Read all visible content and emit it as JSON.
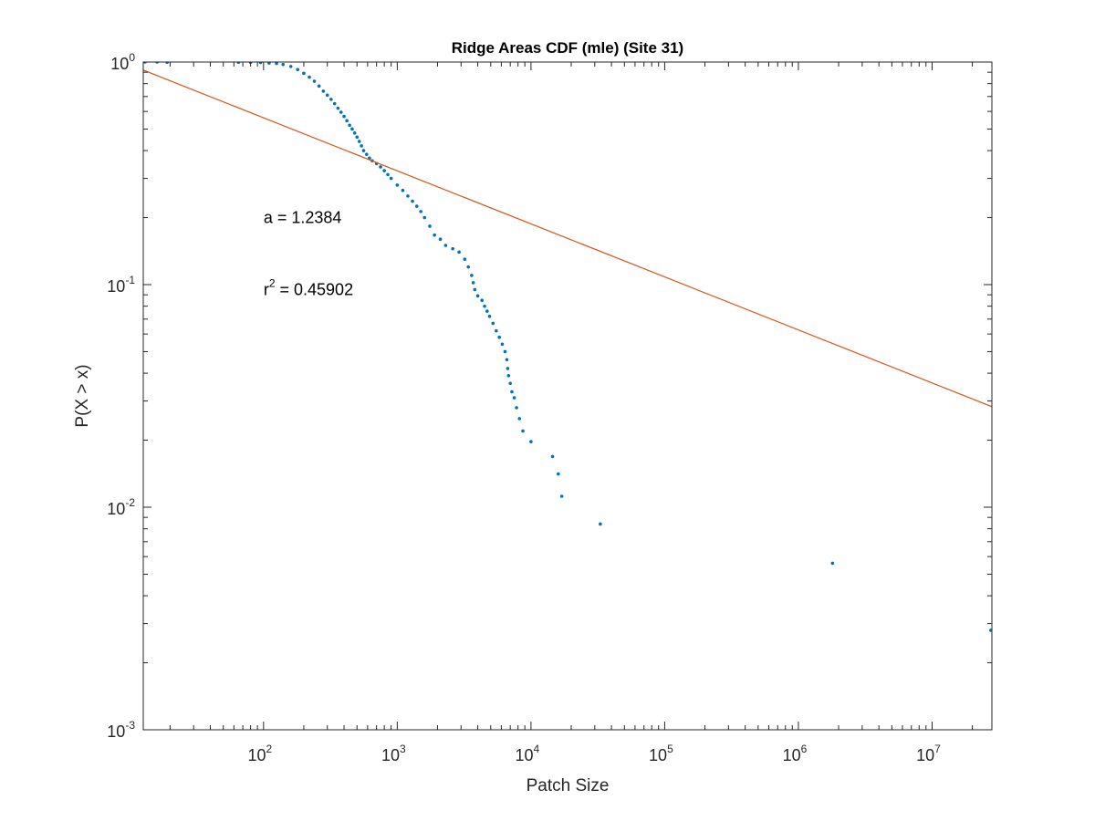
{
  "chart_data": {
    "type": "scatter",
    "title": "Ridge Areas CDF (mle) (Site 31)",
    "xlabel": "Patch Size",
    "ylabel": "P(X > x)",
    "xscale": "log",
    "yscale": "log",
    "xlim": [
      12.6,
      28000000
    ],
    "ylim": [
      0.001,
      1
    ],
    "grid": false,
    "legend": "none",
    "x_ticks": [
      {
        "base": "10",
        "exp": "2",
        "value": 100
      },
      {
        "base": "10",
        "exp": "3",
        "value": 1000
      },
      {
        "base": "10",
        "exp": "4",
        "value": 10000
      },
      {
        "base": "10",
        "exp": "5",
        "value": 100000
      },
      {
        "base": "10",
        "exp": "6",
        "value": 1000000
      },
      {
        "base": "10",
        "exp": "7",
        "value": 10000000
      }
    ],
    "y_ticks": [
      {
        "base": "10",
        "exp": "-3",
        "value": 0.001
      },
      {
        "base": "10",
        "exp": "-2",
        "value": 0.01
      },
      {
        "base": "10",
        "exp": "-1",
        "value": 0.1
      },
      {
        "base": "10",
        "exp": "0",
        "value": 1
      }
    ],
    "series": [
      {
        "color": "#0072BD",
        "points": [
          [
            13,
            1.0
          ],
          [
            16,
            1.0
          ],
          [
            19,
            0.998
          ],
          [
            65,
            0.998
          ],
          [
            80,
            0.997
          ],
          [
            95,
            0.995
          ],
          [
            110,
            0.99
          ],
          [
            125,
            0.985
          ],
          [
            140,
            0.975
          ],
          [
            160,
            0.955
          ],
          [
            180,
            0.925
          ],
          [
            200,
            0.89
          ],
          [
            220,
            0.855
          ],
          [
            240,
            0.82
          ],
          [
            260,
            0.78
          ],
          [
            280,
            0.74
          ],
          [
            300,
            0.71
          ],
          [
            320,
            0.68
          ],
          [
            340,
            0.65
          ],
          [
            360,
            0.62
          ],
          [
            380,
            0.595
          ],
          [
            400,
            0.57
          ],
          [
            420,
            0.545
          ],
          [
            440,
            0.52
          ],
          [
            460,
            0.5
          ],
          [
            480,
            0.48
          ],
          [
            500,
            0.46
          ],
          [
            520,
            0.44
          ],
          [
            540,
            0.42
          ],
          [
            560,
            0.4
          ],
          [
            590,
            0.385
          ],
          [
            620,
            0.37
          ],
          [
            650,
            0.36
          ],
          [
            700,
            0.35
          ],
          [
            750,
            0.338
          ],
          [
            800,
            0.325
          ],
          [
            850,
            0.312
          ],
          [
            900,
            0.3
          ],
          [
            1000,
            0.28
          ],
          [
            1100,
            0.265
          ],
          [
            1200,
            0.25
          ],
          [
            1300,
            0.237
          ],
          [
            1400,
            0.225
          ],
          [
            1500,
            0.213
          ],
          [
            1600,
            0.2
          ],
          [
            1750,
            0.183
          ],
          [
            1900,
            0.167
          ],
          [
            2100,
            0.16
          ],
          [
            2300,
            0.15
          ],
          [
            2600,
            0.145
          ],
          [
            2900,
            0.14
          ],
          [
            3200,
            0.13
          ],
          [
            3400,
            0.12
          ],
          [
            3600,
            0.11
          ],
          [
            3700,
            0.102
          ],
          [
            3800,
            0.095
          ],
          [
            4000,
            0.089
          ],
          [
            4300,
            0.085
          ],
          [
            4500,
            0.08
          ],
          [
            4700,
            0.076
          ],
          [
            4900,
            0.072
          ],
          [
            5200,
            0.067
          ],
          [
            5500,
            0.062
          ],
          [
            5800,
            0.058
          ],
          [
            6100,
            0.054
          ],
          [
            6400,
            0.05
          ],
          [
            6600,
            0.046
          ],
          [
            6700,
            0.042
          ],
          [
            6800,
            0.039
          ],
          [
            7000,
            0.036
          ],
          [
            7200,
            0.033
          ],
          [
            7500,
            0.031
          ],
          [
            7800,
            0.028
          ],
          [
            8200,
            0.025
          ],
          [
            8700,
            0.022
          ],
          [
            10000,
            0.0197
          ],
          [
            14500,
            0.0169
          ],
          [
            16000,
            0.0141
          ],
          [
            17000,
            0.0112
          ],
          [
            33000,
            0.0084
          ],
          [
            1800000,
            0.0056
          ],
          [
            27500000,
            0.0028
          ]
        ]
      },
      {
        "type": "line",
        "color": "#D95319",
        "points": [
          [
            12.6,
            0.92
          ],
          [
            28000000,
            0.0283
          ]
        ]
      }
    ],
    "annotations": [
      {
        "text": "a = 1.2384",
        "x": 100,
        "y": 0.2
      },
      {
        "base": "r",
        "sup": "2",
        "text": " = 0.45902",
        "x": 100,
        "y": 0.095
      }
    ]
  }
}
